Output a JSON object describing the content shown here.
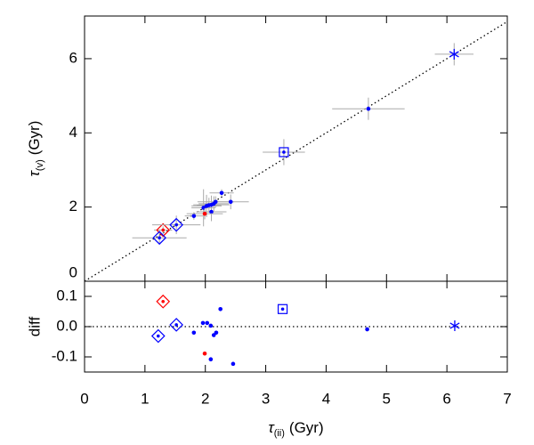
{
  "chart_data": [
    {
      "type": "scatter",
      "y_label": {
        "symbol": "τ",
        "subscript": "(v)",
        "unit": "(Gyr)"
      },
      "xlim": [
        0,
        7
      ],
      "xticks": [
        0,
        1,
        2,
        3,
        4,
        5,
        6,
        7
      ],
      "show_xtick_labels": false,
      "ylim": [
        0,
        7.15
      ],
      "yticks": [
        0,
        2,
        4,
        6
      ],
      "identity_line": true,
      "series": [
        {
          "color": "#0000ff",
          "marker": "dot",
          "x": [
            1.81,
            1.97,
            2.02,
            2.06,
            2.1,
            2.14,
            2.17,
            2.27,
            2.42,
            2.1
          ],
          "values": [
            1.76,
            1.98,
            2.03,
            2.05,
            2.06,
            2.09,
            2.14,
            2.38,
            2.14,
            1.87
          ],
          "xerr": [
            0.15,
            0.2,
            0.25,
            0.2,
            0.3,
            0.25,
            0.3,
            0.2,
            0.3,
            0.25
          ],
          "yerr": [
            0.1,
            0.5,
            0.3,
            0.2,
            0.25,
            0.2,
            0.15,
            0.1,
            0.2,
            0.25
          ]
        },
        {
          "color": "#ff0000",
          "marker": "dot",
          "x": [
            1.99
          ],
          "values": [
            1.82
          ],
          "xerr": [
            0.3
          ],
          "yerr": [
            0.15
          ]
        },
        {
          "color": "#ff0000",
          "marker": "diamond",
          "x": [
            1.3
          ],
          "values": [
            1.38
          ],
          "xerr": [
            0.15
          ],
          "yerr": [
            0.1
          ]
        },
        {
          "color": "#0000ff",
          "marker": "diamond",
          "x": [
            1.52,
            1.24
          ],
          "values": [
            1.52,
            1.17
          ],
          "xerr": [
            0.4,
            0.45
          ],
          "yerr": [
            0.25,
            0.15
          ]
        },
        {
          "color": "#0000ff",
          "marker": "square",
          "x": [
            3.3
          ],
          "values": [
            3.48
          ],
          "xerr": [
            0.35
          ],
          "yerr": [
            0.35
          ]
        },
        {
          "color": "#0000ff",
          "marker": "dot",
          "x": [
            4.7
          ],
          "values": [
            4.65
          ],
          "xerr": [
            0.6
          ],
          "yerr": [
            0.3
          ]
        },
        {
          "color": "#0000ff",
          "marker": "star",
          "x": [
            6.12
          ],
          "values": [
            6.12
          ],
          "xerr": [
            0.32
          ],
          "yerr": [
            0.3
          ]
        }
      ]
    },
    {
      "type": "scatter",
      "x_label": {
        "symbol": "τ",
        "subscript": "(ii)",
        "unit": "(Gyr)"
      },
      "y_label": "diff",
      "xlim": [
        0,
        7
      ],
      "xticks": [
        0,
        1,
        2,
        3,
        4,
        5,
        6,
        7
      ],
      "show_xtick_labels": true,
      "ylim": [
        -0.15,
        0.15
      ],
      "yticks": [
        -0.1,
        {
          "value": 0,
          "label": "0.0"
        },
        0.1
      ],
      "zero_line": true,
      "series": [
        {
          "color": "#0000ff",
          "marker": "dot",
          "x": [
            1.81,
            1.96,
            2.03,
            2.09,
            2.09,
            2.18,
            2.14,
            2.25,
            2.46,
            4.68
          ],
          "values": [
            -0.02,
            0.012,
            0.012,
            0.003,
            -0.108,
            -0.02,
            -0.028,
            0.058,
            -0.123,
            -0.009
          ]
        },
        {
          "color": "#ff0000",
          "marker": "dot",
          "x": [
            1.99
          ],
          "values": [
            -0.089
          ]
        },
        {
          "color": "#ff0000",
          "marker": "diamond",
          "x": [
            1.3
          ],
          "values": [
            0.083
          ]
        },
        {
          "color": "#0000ff",
          "marker": "diamond",
          "x": [
            1.52,
            1.22
          ],
          "values": [
            0.006,
            -0.031
          ]
        },
        {
          "color": "#0000ff",
          "marker": "square",
          "x": [
            3.28
          ],
          "values": [
            0.058
          ]
        },
        {
          "color": "#0000ff",
          "marker": "star",
          "x": [
            6.13
          ],
          "values": [
            0.003
          ]
        }
      ]
    }
  ]
}
